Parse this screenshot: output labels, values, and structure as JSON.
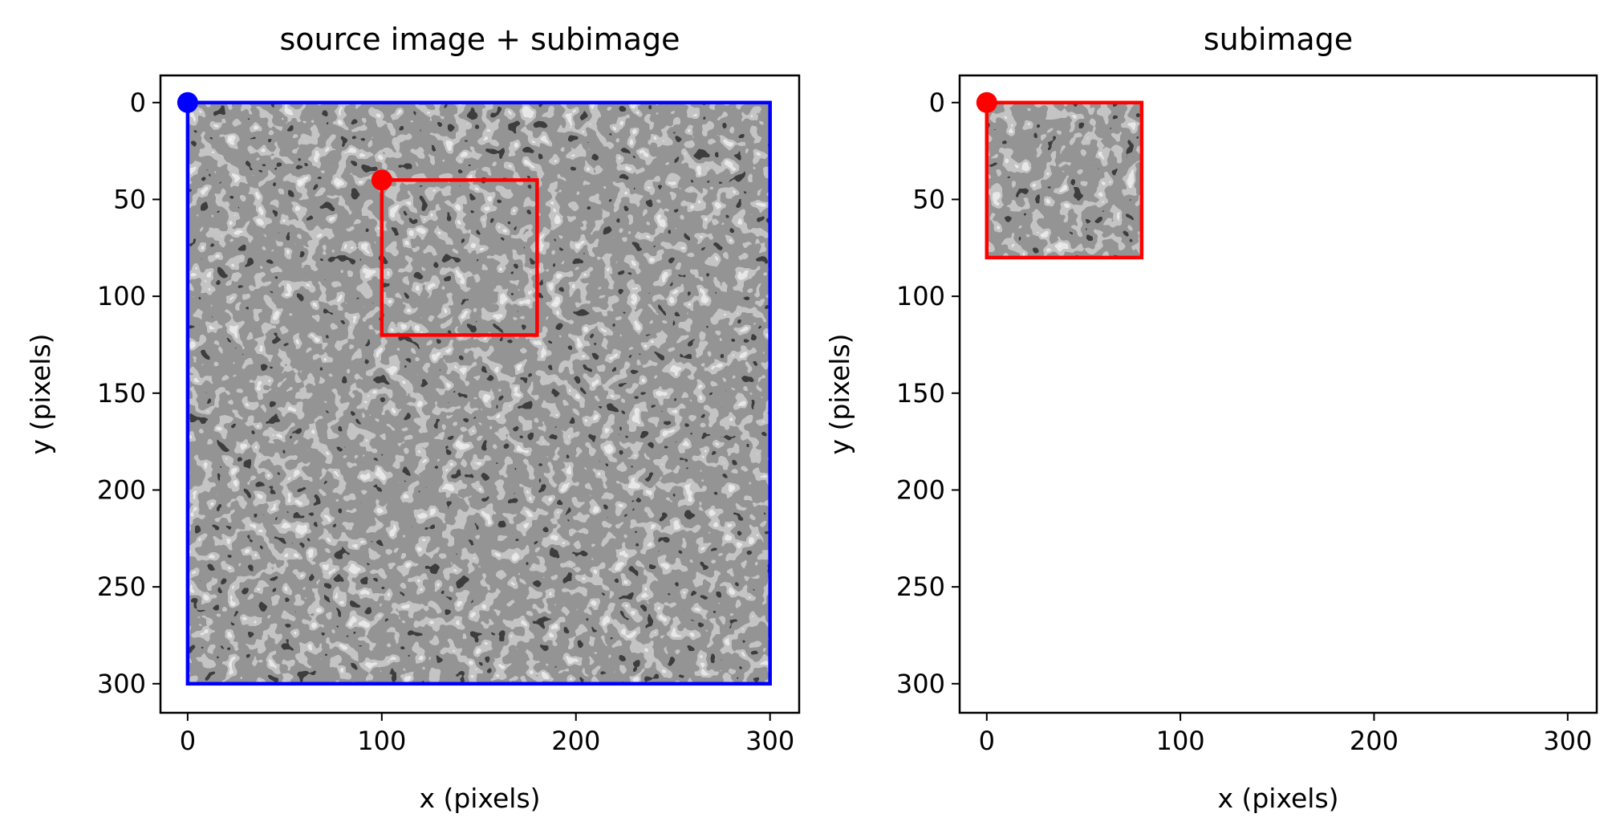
{
  "chart_data": [
    {
      "type": "image",
      "title": "source image + subimage",
      "xlabel": "x (pixels)",
      "ylabel": "y (pixels)",
      "xlim": [
        -14,
        315
      ],
      "ylim": [
        315,
        -14
      ],
      "xticks": [
        0,
        100,
        200,
        300
      ],
      "yticks": [
        0,
        50,
        100,
        150,
        200,
        250,
        300
      ],
      "image_extent": {
        "x": [
          0,
          300
        ],
        "y": [
          0,
          300
        ]
      },
      "rectangles": [
        {
          "x": 0,
          "y": 0,
          "width": 300,
          "height": 300,
          "color": "#0000ff"
        },
        {
          "x": 100,
          "y": 40,
          "width": 80,
          "height": 80,
          "color": "#ff0000"
        }
      ],
      "points": [
        {
          "x": 0,
          "y": 0,
          "color": "#0000ff"
        },
        {
          "x": 100,
          "y": 40,
          "color": "#ff0000"
        }
      ]
    },
    {
      "type": "image",
      "title": "subimage",
      "xlabel": "x (pixels)",
      "ylabel": "y (pixels)",
      "xlim": [
        -14,
        315
      ],
      "ylim": [
        315,
        -14
      ],
      "xticks": [
        0,
        100,
        200,
        300
      ],
      "yticks": [
        0,
        50,
        100,
        150,
        200,
        250,
        300
      ],
      "image_extent": {
        "x": [
          0,
          80
        ],
        "y": [
          0,
          80
        ]
      },
      "rectangles": [
        {
          "x": 0,
          "y": 0,
          "width": 80,
          "height": 80,
          "color": "#ff0000"
        }
      ],
      "points": [
        {
          "x": 0,
          "y": 0,
          "color": "#ff0000"
        }
      ]
    }
  ]
}
